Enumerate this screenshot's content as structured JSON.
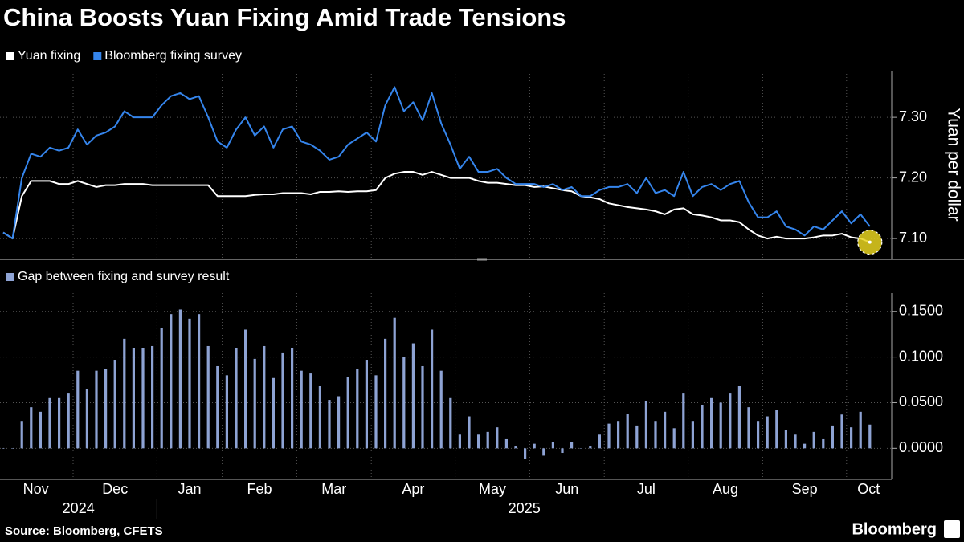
{
  "chart_data": [
    {
      "type": "line",
      "title": "China Boosts Yuan Fixing Amid Trade Tensions",
      "y_label": "Yuan per dollar",
      "ylim": [
        7.067,
        7.377
      ],
      "yticks": [
        {
          "value": 7.1,
          "label": "7.10"
        },
        {
          "value": 7.2,
          "label": "7.20"
        },
        {
          "value": 7.3,
          "label": "7.30"
        }
      ],
      "grid": true,
      "legend": "top-left",
      "highlight_color": "#e8d320",
      "series": [
        {
          "name": "Yuan fixing",
          "color": "#ffffff",
          "values": [
            7.11,
            7.1,
            7.17,
            7.195,
            7.195,
            7.195,
            7.19,
            7.19,
            7.195,
            7.19,
            7.185,
            7.188,
            7.188,
            7.19,
            7.19,
            7.19,
            7.188,
            7.188,
            7.188,
            7.188,
            7.188,
            7.188,
            7.188,
            7.17,
            7.17,
            7.17,
            7.17,
            7.172,
            7.173,
            7.173,
            7.175,
            7.175,
            7.175,
            7.173,
            7.177,
            7.177,
            7.178,
            7.177,
            7.178,
            7.178,
            7.18,
            7.2,
            7.207,
            7.21,
            7.21,
            7.205,
            7.21,
            7.205,
            7.2,
            7.2,
            7.2,
            7.195,
            7.192,
            7.192,
            7.19,
            7.188,
            7.188,
            7.185,
            7.186,
            7.183,
            7.18,
            7.178,
            7.17,
            7.168,
            7.165,
            7.158,
            7.155,
            7.152,
            7.15,
            7.148,
            7.145,
            7.14,
            7.148,
            7.15,
            7.14,
            7.138,
            7.135,
            7.13,
            7.13,
            7.127,
            7.115,
            7.105,
            7.1,
            7.103,
            7.1,
            7.1,
            7.1,
            7.102,
            7.105,
            7.105,
            7.108,
            7.102,
            7.1,
            7.094
          ]
        },
        {
          "name": "Bloomberg fixing survey",
          "color": "#3585ec",
          "values": [
            7.11,
            7.1,
            7.2,
            7.24,
            7.235,
            7.25,
            7.245,
            7.25,
            7.28,
            7.255,
            7.27,
            7.275,
            7.285,
            7.31,
            7.3,
            7.3,
            7.3,
            7.32,
            7.335,
            7.34,
            7.33,
            7.335,
            7.3,
            7.26,
            7.25,
            7.28,
            7.3,
            7.27,
            7.285,
            7.25,
            7.28,
            7.285,
            7.26,
            7.255,
            7.245,
            7.23,
            7.235,
            7.255,
            7.265,
            7.275,
            7.26,
            7.32,
            7.35,
            7.31,
            7.325,
            7.295,
            7.34,
            7.29,
            7.255,
            7.215,
            7.235,
            7.21,
            7.21,
            7.215,
            7.2,
            7.19,
            7.19,
            7.19,
            7.185,
            7.19,
            7.18,
            7.185,
            7.17,
            7.17,
            7.18,
            7.185,
            7.185,
            7.19,
            7.175,
            7.2,
            7.175,
            7.18,
            7.17,
            7.21,
            7.17,
            7.185,
            7.19,
            7.18,
            7.19,
            7.195,
            7.16,
            7.135,
            7.135,
            7.145,
            7.12,
            7.115,
            7.105,
            7.12,
            7.115,
            7.13,
            7.145,
            7.125,
            7.14,
            7.12
          ]
        }
      ]
    },
    {
      "type": "bar",
      "categories": [
        "Nov",
        null,
        null,
        null,
        null,
        null,
        null,
        null,
        "Dec",
        null,
        null,
        null,
        null,
        null,
        null,
        null,
        null,
        "Jan",
        null,
        null,
        null,
        null,
        null,
        null,
        "Feb",
        null,
        null,
        null,
        null,
        null,
        null,
        null,
        "Mar",
        null,
        null,
        null,
        null,
        null,
        null,
        null,
        "Apr",
        null,
        null,
        null,
        null,
        null,
        null,
        null,
        null,
        "May",
        null,
        null,
        null,
        null,
        null,
        null,
        null,
        "Jun",
        null,
        null,
        null,
        null,
        null,
        null,
        null,
        "Jul",
        null,
        null,
        null,
        null,
        null,
        null,
        null,
        null,
        "Aug",
        null,
        null,
        null,
        null,
        null,
        null,
        null,
        "Sep",
        null,
        null,
        null,
        null,
        null,
        null,
        null,
        null,
        "Oct",
        null,
        null
      ],
      "x_groups": [
        "2024",
        "2025"
      ],
      "ylim": [
        -0.034,
        0.17
      ],
      "yticks": [
        {
          "value": 0,
          "label": "0.0000"
        },
        {
          "value": 0.05,
          "label": "0.0500"
        },
        {
          "value": 0.1,
          "label": "0.1000"
        },
        {
          "value": 0.15,
          "label": "0.1500"
        }
      ],
      "grid": true,
      "series": [
        {
          "name": "Gap between fixing and survey result",
          "color": "#8ea3d4",
          "values": [
            0,
            0,
            0.03,
            0.045,
            0.04,
            0.055,
            0.055,
            0.06,
            0.085,
            0.065,
            0.085,
            0.087,
            0.097,
            0.12,
            0.11,
            0.11,
            0.112,
            0.132,
            0.147,
            0.152,
            0.142,
            0.147,
            0.112,
            0.09,
            0.08,
            0.11,
            0.13,
            0.098,
            0.112,
            0.077,
            0.105,
            0.11,
            0.085,
            0.082,
            0.068,
            0.053,
            0.057,
            0.078,
            0.087,
            0.097,
            0.08,
            0.12,
            0.143,
            0.1,
            0.115,
            0.09,
            0.13,
            0.085,
            0.055,
            0.015,
            0.035,
            0.015,
            0.018,
            0.023,
            0.01,
            0.002,
            -0.012,
            0.005,
            -0.008,
            0.007,
            -0.005,
            0.007,
            0,
            0.002,
            0.015,
            0.027,
            0.03,
            0.038,
            0.025,
            0.052,
            0.03,
            0.04,
            0.022,
            0.06,
            0.03,
            0.047,
            0.055,
            0.05,
            0.06,
            0.068,
            0.045,
            0.03,
            0.035,
            0.042,
            0.02,
            0.015,
            0.005,
            0.018,
            0.01,
            0.025,
            0.037,
            0.023,
            0.04,
            0.026
          ]
        }
      ]
    }
  ],
  "source": "Source: Bloomberg, CFETS",
  "brand": "Bloomberg"
}
